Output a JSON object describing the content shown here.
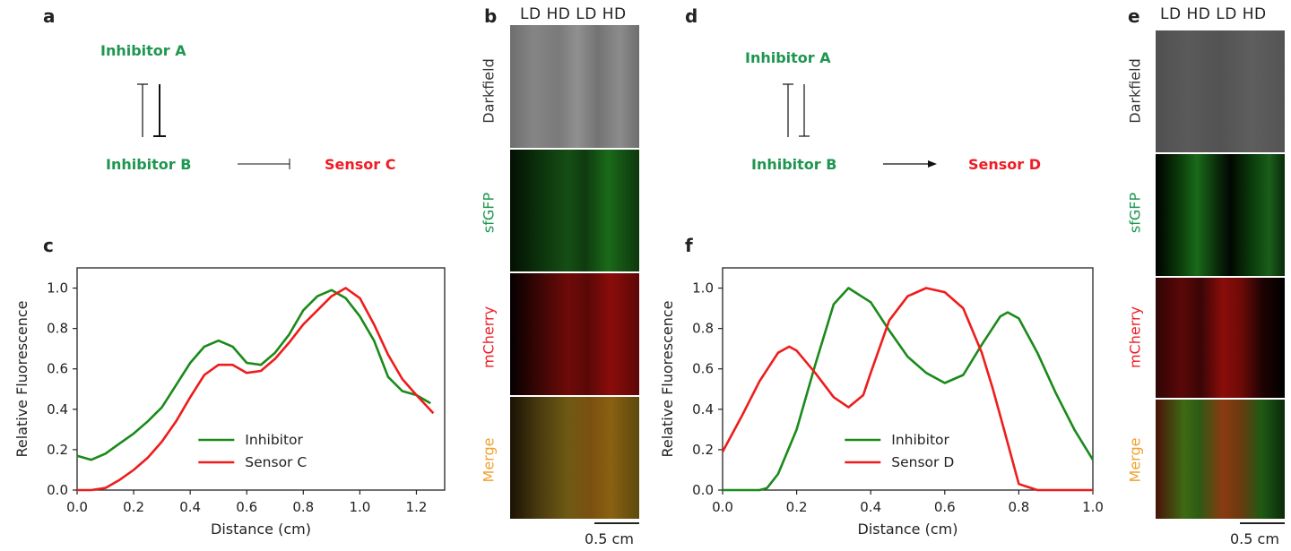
{
  "panels": {
    "a": "a",
    "b": "b",
    "c": "c",
    "d": "d",
    "e": "e",
    "f": "f"
  },
  "network_a": {
    "inhibitor_a": "Inhibitor A",
    "inhibitor_b": "Inhibitor B",
    "sensor": "Sensor C"
  },
  "network_d": {
    "inhibitor_a": "Inhibitor A",
    "inhibitor_b": "Inhibitor B",
    "sensor": "Sensor D"
  },
  "image_strips": {
    "lane_header": "LD HD LD HD",
    "rows": [
      "Darkfield",
      "sfGFP",
      "mCherry",
      "Merge"
    ],
    "row_colors": [
      "#333333",
      "#1e9650",
      "#ee1c25",
      "#f0a030"
    ],
    "scale_bar": "0.5 cm"
  },
  "colors": {
    "inhibitor": "#1a8a1a",
    "sensor": "#ee1c1c"
  },
  "chart_data": [
    {
      "type": "line",
      "panel": "c",
      "xlabel": "Distance (cm)",
      "ylabel": "Relative Fluorescence",
      "xlim": [
        0,
        1.3
      ],
      "ylim": [
        0,
        1.1
      ],
      "xticks": [
        "0.0",
        "0.2",
        "0.4",
        "0.6",
        "0.8",
        "1.0",
        "1.2"
      ],
      "xtick_values": [
        0,
        0.2,
        0.4,
        0.6,
        0.8,
        1.0,
        1.2
      ],
      "yticks": [
        "0.0",
        "0.2",
        "0.4",
        "0.6",
        "0.8",
        "1.0"
      ],
      "ytick_values": [
        0,
        0.2,
        0.4,
        0.6,
        0.8,
        1.0
      ],
      "legend_position": "lower-center",
      "series": [
        {
          "name": "Inhibitor",
          "color": "#1a8a1a",
          "x": [
            0,
            0.05,
            0.1,
            0.15,
            0.2,
            0.25,
            0.3,
            0.35,
            0.4,
            0.45,
            0.5,
            0.55,
            0.6,
            0.65,
            0.7,
            0.75,
            0.8,
            0.85,
            0.9,
            0.95,
            1.0,
            1.05,
            1.1,
            1.15,
            1.2,
            1.25
          ],
          "y": [
            0.17,
            0.15,
            0.18,
            0.23,
            0.28,
            0.34,
            0.41,
            0.52,
            0.63,
            0.71,
            0.74,
            0.71,
            0.63,
            0.62,
            0.68,
            0.77,
            0.89,
            0.96,
            0.99,
            0.95,
            0.86,
            0.74,
            0.56,
            0.49,
            0.47,
            0.43
          ]
        },
        {
          "name": "Sensor C",
          "color": "#ee1c1c",
          "x": [
            0,
            0.05,
            0.1,
            0.15,
            0.2,
            0.25,
            0.3,
            0.35,
            0.4,
            0.45,
            0.5,
            0.55,
            0.6,
            0.65,
            0.7,
            0.75,
            0.8,
            0.85,
            0.9,
            0.95,
            1.0,
            1.05,
            1.1,
            1.15,
            1.2,
            1.26
          ],
          "y": [
            0.0,
            0.0,
            0.01,
            0.05,
            0.1,
            0.16,
            0.24,
            0.34,
            0.46,
            0.57,
            0.62,
            0.62,
            0.58,
            0.59,
            0.65,
            0.73,
            0.82,
            0.89,
            0.96,
            1.0,
            0.95,
            0.82,
            0.67,
            0.55,
            0.47,
            0.38
          ]
        }
      ]
    },
    {
      "type": "line",
      "panel": "f",
      "xlabel": "Distance (cm)",
      "ylabel": "Relative Fluorescence",
      "xlim": [
        0,
        1.0
      ],
      "ylim": [
        0,
        1.1
      ],
      "xticks": [
        "0.0",
        "0.2",
        "0.4",
        "0.6",
        "0.8",
        "1.0"
      ],
      "xtick_values": [
        0,
        0.2,
        0.4,
        0.6,
        0.8,
        1.0
      ],
      "yticks": [
        "0.0",
        "0.2",
        "0.4",
        "0.6",
        "0.8",
        "1.0"
      ],
      "ytick_values": [
        0,
        0.2,
        0.4,
        0.6,
        0.8,
        1.0
      ],
      "legend_position": "lower-center",
      "series": [
        {
          "name": "Inhibitor",
          "color": "#1a8a1a",
          "x": [
            0,
            0.05,
            0.1,
            0.12,
            0.15,
            0.2,
            0.25,
            0.3,
            0.34,
            0.4,
            0.45,
            0.5,
            0.55,
            0.6,
            0.65,
            0.7,
            0.75,
            0.77,
            0.8,
            0.85,
            0.9,
            0.95,
            1.0
          ],
          "y": [
            0.0,
            0.0,
            0.0,
            0.01,
            0.08,
            0.3,
            0.62,
            0.92,
            1.0,
            0.93,
            0.79,
            0.66,
            0.58,
            0.53,
            0.57,
            0.72,
            0.86,
            0.88,
            0.85,
            0.68,
            0.48,
            0.3,
            0.15
          ]
        },
        {
          "name": "Sensor D",
          "color": "#ee1c1c",
          "x": [
            0,
            0.05,
            0.1,
            0.15,
            0.18,
            0.2,
            0.25,
            0.3,
            0.34,
            0.38,
            0.4,
            0.45,
            0.5,
            0.55,
            0.6,
            0.65,
            0.7,
            0.73,
            0.76,
            0.8,
            0.85,
            0.9,
            0.95,
            1.0
          ],
          "y": [
            0.19,
            0.36,
            0.54,
            0.68,
            0.71,
            0.69,
            0.58,
            0.46,
            0.41,
            0.47,
            0.58,
            0.84,
            0.96,
            1.0,
            0.98,
            0.9,
            0.68,
            0.5,
            0.3,
            0.03,
            0.0,
            0.0,
            0.0,
            0.0
          ]
        }
      ]
    }
  ]
}
